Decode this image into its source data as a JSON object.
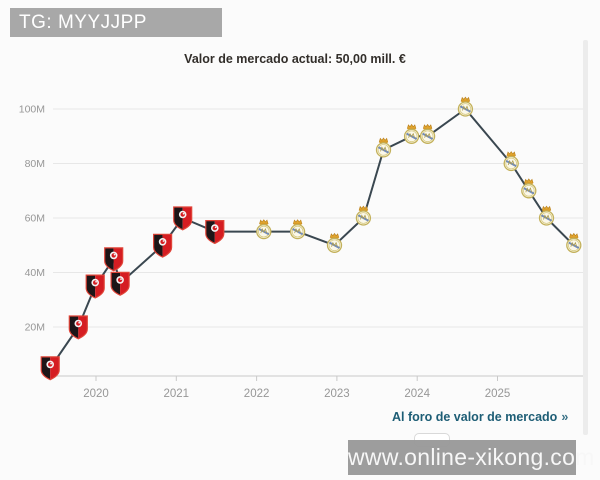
{
  "overlay": {
    "tag_label": "TG: MYYJJPP",
    "watermark_text": "www.online-xikong.com"
  },
  "header": {
    "title": "Valor de mercado actual: 50,00 mill. €"
  },
  "footer": {
    "forum_link_label": "Al foro de valor de mercado",
    "forum_link_arrow": "»"
  },
  "icons": {
    "rennes": "rennes-crest-icon",
    "real_madrid": "real-madrid-crest-icon",
    "forum_arrow": "double-chevron-right-icon"
  },
  "colors": {
    "accent_link": "#1d5d75",
    "line": "#3a4750",
    "grid": "#e7e7e7",
    "axis": "#c9c9c9",
    "tick_label": "#979797",
    "tag_bg": "#a8a8a8",
    "watermark_bg": "#999999",
    "rennes_red": "#d51d22",
    "rennes_black": "#1d1517",
    "rm_gold": "#e2a62e",
    "rm_cream": "#fbf8ea",
    "rm_blue": "#5b79b5"
  },
  "chart_data": {
    "type": "line",
    "title": "Valor de mercado actual: 50,00 mill. €",
    "value_unit": "mill. €",
    "x": [
      2019.43,
      2019.78,
      2019.99,
      2020.22,
      2020.3,
      2020.83,
      2021.08,
      2021.48,
      2022.09,
      2022.51,
      2022.97,
      2023.33,
      2023.58,
      2023.93,
      2024.13,
      2024.6,
      2025.17,
      2025.39,
      2025.61,
      2025.95
    ],
    "values": [
      5,
      20,
      35,
      45,
      36,
      50,
      60,
      55,
      55,
      55,
      50,
      60,
      85,
      90,
      90,
      100,
      80,
      70,
      60,
      50
    ],
    "point_clubs": [
      "rennes",
      "rennes",
      "rennes",
      "rennes",
      "rennes",
      "rennes",
      "rennes",
      "rennes",
      "real_madrid",
      "real_madrid",
      "real_madrid",
      "real_madrid",
      "real_madrid",
      "real_madrid",
      "real_madrid",
      "real_madrid",
      "real_madrid",
      "real_madrid",
      "real_madrid",
      "real_madrid"
    ],
    "xticks": [
      2020,
      2021,
      2022,
      2023,
      2024,
      2025
    ],
    "ytick_values": [
      20,
      40,
      60,
      80,
      100
    ],
    "ytick_labels": [
      "20M",
      "40M",
      "60M",
      "80M",
      "100M"
    ],
    "xlim": [
      2019.4,
      2026.1
    ],
    "ylim": [
      0,
      108
    ],
    "grid": true,
    "legend": false,
    "line_color": "#3a4750",
    "current_value_label": "50,00 mill. €"
  }
}
